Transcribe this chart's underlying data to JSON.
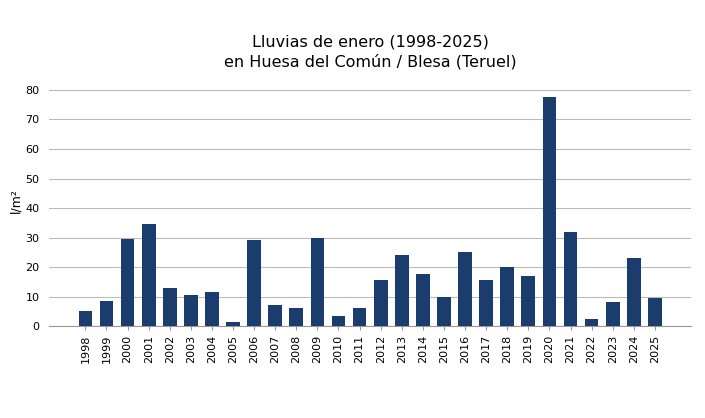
{
  "title": "Lluvias de enero (1998-2025)\nen Huesa del Común / Blesa (Teruel)",
  "ylabel": "l/m²",
  "years": [
    1998,
    1999,
    2000,
    2001,
    2002,
    2003,
    2004,
    2005,
    2006,
    2007,
    2008,
    2009,
    2010,
    2011,
    2012,
    2013,
    2014,
    2015,
    2016,
    2017,
    2018,
    2019,
    2020,
    2021,
    2022,
    2023,
    2024,
    2025
  ],
  "values": [
    5,
    8.5,
    29.5,
    34.5,
    13,
    10.5,
    11.5,
    1.5,
    29,
    7,
    6,
    30,
    3.5,
    6,
    15.5,
    24,
    17.5,
    10,
    25,
    15.5,
    20,
    17,
    77.5,
    32,
    2.5,
    8,
    23,
    9.5
  ],
  "bar_color": "#1a3d6e",
  "ylim": [
    0,
    85
  ],
  "yticks": [
    0,
    10,
    20,
    30,
    40,
    50,
    60,
    70,
    80
  ],
  "background_color": "#ffffff",
  "grid_color": "#bbbbbb",
  "title_fontsize": 11.5,
  "ylabel_fontsize": 9,
  "tick_fontsize": 8,
  "bar_width": 0.65
}
